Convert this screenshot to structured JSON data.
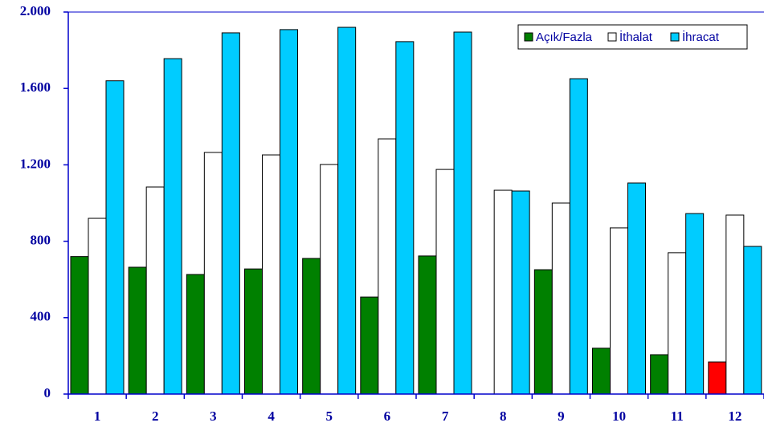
{
  "chart_data": {
    "type": "bar",
    "categories": [
      "1",
      "2",
      "3",
      "4",
      "5",
      "6",
      "7",
      "8",
      "9",
      "10",
      "11",
      "12"
    ],
    "series": [
      {
        "name": "Açık/Fazla",
        "color": "#008000",
        "colors": [
          "#008000",
          "#008000",
          "#008000",
          "#008000",
          "#008000",
          "#008000",
          "#008000",
          "#008000",
          "#008000",
          "#008000",
          "#008000",
          "#ff0000"
        ],
        "values": [
          720,
          664,
          626,
          655,
          710,
          508,
          723,
          0,
          651,
          240,
          206,
          168
        ]
      },
      {
        "name": "İthalat",
        "color": "#ffffff",
        "values": [
          920,
          1084,
          1265,
          1252,
          1202,
          1336,
          1176,
          1067,
          1000,
          870,
          740,
          937
        ]
      },
      {
        "name": "İhracat",
        "color": "#00ccff",
        "values": [
          1640,
          1756,
          1891,
          1908,
          1920,
          1845,
          1895,
          1063,
          1651,
          1105,
          945,
          773
        ]
      }
    ],
    "ylim": [
      0,
      2000
    ],
    "yticks": [
      0,
      400,
      800,
      {
        "value": 1200,
        "label": "1.200"
      },
      {
        "value": 1600,
        "label": "1.600"
      },
      {
        "value": 2000,
        "label": "2.000"
      }
    ],
    "grid": false,
    "legend": "top-right"
  }
}
